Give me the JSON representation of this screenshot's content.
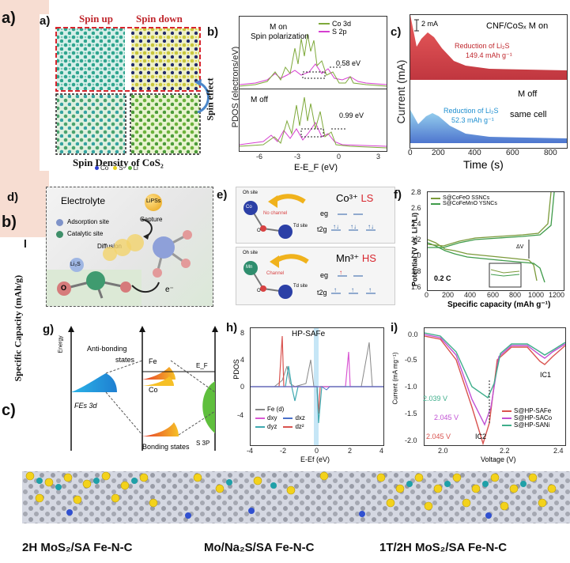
{
  "outer": {
    "label_a": "a)",
    "label_b": "b)",
    "label_c": "c)",
    "label_b_sub": "l",
    "side_axis": "Specific Capacity (mAh/g)"
  },
  "panel_a": {
    "label": "a)",
    "spin_up": "Spin up",
    "spin_down": "Spin down",
    "caption": "Spin Density of CoS₂",
    "legend": [
      {
        "name": "Co",
        "color": "#2a3bd1"
      },
      {
        "name": "S",
        "color": "#e8d21a"
      },
      {
        "name": "Li",
        "color": "#5fb33c"
      }
    ],
    "arrow_text": "Spin effect"
  },
  "panel_b": {
    "label": "b)",
    "ylabel": "PDOS (electrons/eV)",
    "xlabel": "E-E_F (eV)",
    "top_title": "M on",
    "top_subtitle": "Spin polarization",
    "top_gap": "0.58 eV",
    "bottom_title": "M off",
    "bottom_gap": "0.99 eV",
    "legend": [
      "Co  3d",
      "S   2p"
    ],
    "xticks": [
      "-6",
      "-3",
      "0",
      "3"
    ]
  },
  "panel_c": {
    "label": "c)",
    "title": "CNF/CoSₓ M on",
    "scale": "2 mA",
    "ylabel": "Current (mA)",
    "xlabel": "Time (s)",
    "red_text_1": "Reduction of Li₂S",
    "red_text_2": "149.4 mAh g⁻¹",
    "blue_text_1": "Reduction of Li₂S",
    "blue_text_2": "52.3 mAh g⁻¹",
    "m_off": "M off",
    "same_cell": "same cell",
    "xticks": [
      "0",
      "200",
      "400",
      "600",
      "800"
    ]
  },
  "panel_d": {
    "label": "d)",
    "electrolyte": "Electrolyte",
    "lipss": "LiPSs",
    "capture": "Capture",
    "adsorption": "Adsorption site",
    "catalytic": "Catalytic site",
    "diffusion": "Diffusion",
    "li2s": "Li₂S",
    "o": "O",
    "e": "e⁻"
  },
  "panel_e": {
    "label": "e)",
    "top_ion": "Co³⁺",
    "top_state": "LS",
    "bottom_ion": "Mn³⁺",
    "bottom_state": "HS",
    "oh_site": "Oh site",
    "td_site": "Td site",
    "no_channel": "No channel",
    "channel": "Channel",
    "eg": "eg",
    "t2g": "t2g",
    "co": "Co",
    "mn": "Mn",
    "o": "O"
  },
  "panel_f": {
    "label": "f)",
    "legend": [
      "S@CoFeO SSNCs",
      "S@CoFeMnO YSNCs"
    ],
    "ylabel": "Potential (V vs. Li⁺/Li)",
    "xlabel": "Specific capacity (mAh g⁻¹)",
    "rate": "0.2 C",
    "dv": "ΔV",
    "yticks": [
      "2.8",
      "2.6",
      "2.4",
      "2.2",
      "2.0",
      "1.8",
      "1.6"
    ],
    "xticks": [
      "0",
      "200",
      "400",
      "600",
      "800",
      "1000",
      "1200"
    ]
  },
  "panel_g": {
    "label": "g)",
    "energy": "Energy",
    "anti": "Anti-bonding",
    "states": "states",
    "fe": "Fe",
    "co": "Co",
    "ef": "E_F",
    "fes": "FEs 3d",
    "s3p": "S 3P",
    "bonding": "Bonding states"
  },
  "panel_h": {
    "label": "h)",
    "title": "HP-SAFe",
    "ylabel": "PDOS",
    "xlabel": "E-Ef (eV)",
    "yticks": [
      "8",
      "4",
      "0",
      "-4"
    ],
    "xticks": [
      "-4",
      "-2",
      "0",
      "2",
      "4"
    ],
    "legend": [
      "Fe (d)",
      "dxy",
      "dxz",
      "dyz",
      "dz²"
    ]
  },
  "panel_i": {
    "label": "i)",
    "ylabel": "Current (mA mg⁻¹)",
    "xlabel": "Voltage (V)",
    "yticks": [
      "0.0",
      "-0.5",
      "-1.0",
      "-1.5",
      "-2.0"
    ],
    "xticks": [
      "2.0",
      "2.2",
      "2.4"
    ],
    "ic1": "IC1",
    "ic2": "IC2",
    "v1": "2.039 V",
    "v2": "2.045 V",
    "v3": "2.045 V",
    "legend": [
      "S@HP-SAFe",
      "S@HP-SACo",
      "S@HP-SANi"
    ]
  },
  "bottom": {
    "labels": [
      "2H MoS₂/SA Fe-N-C",
      "Mo/Na₂S/SA Fe-N-C",
      "1T/2H MoS₂/SA Fe-N-C"
    ]
  }
}
